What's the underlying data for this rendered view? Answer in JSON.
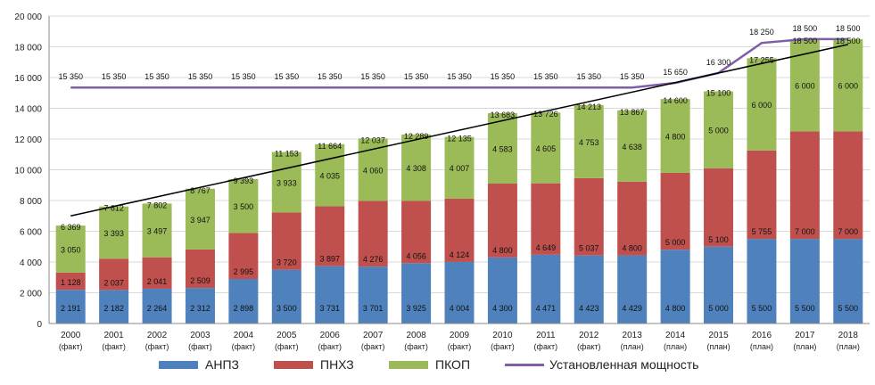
{
  "chart_data": {
    "type": "bar",
    "stacked": true,
    "categories": [
      "2000",
      "2001",
      "2002",
      "2003",
      "2004",
      "2005",
      "2006",
      "2007",
      "2008",
      "2009",
      "2010",
      "2011",
      "2012",
      "2013",
      "2014",
      "2015",
      "2016",
      "2017",
      "2018"
    ],
    "sublabels": [
      "(факт)",
      "(факт)",
      "(факт)",
      "(факт)",
      "(факт)",
      "(факт)",
      "(факт)",
      "(факт)",
      "(факт)",
      "(факт)",
      "(факт)",
      "(факт)",
      "(факт)",
      "(план)",
      "(план)",
      "(план)",
      "(план)",
      "(план)",
      "(план)"
    ],
    "series": [
      {
        "name": "АНПЗ",
        "color": "#4f81bd",
        "values": [
          2191,
          2182,
          2264,
          2312,
          2898,
          3500,
          3731,
          3701,
          3925,
          4004,
          4300,
          4471,
          4423,
          4429,
          4800,
          5000,
          5500,
          5500,
          5500
        ],
        "labels": [
          "2 191",
          "2 182",
          "2 264",
          "2 312",
          "2 898",
          "3 500",
          "3 731",
          "3 701",
          "3 925",
          "4 004",
          "4 300",
          "4 471",
          "4 423",
          "4 429",
          "4 800",
          "5 000",
          "5 500",
          "5 500",
          "5 500"
        ]
      },
      {
        "name": "ПНХЗ",
        "color": "#c0504d",
        "values": [
          1128,
          2037,
          2041,
          2509,
          2995,
          3720,
          3897,
          4276,
          4056,
          4124,
          4800,
          4649,
          5037,
          4800,
          5000,
          5100,
          5755,
          7000,
          7000
        ],
        "labels": [
          "1 128",
          "2 037",
          "2 041",
          "2 509",
          "2 995",
          "3 720",
          "3 897",
          "4 276",
          "4 056",
          "4 124",
          "4 800",
          "4 649",
          "5 037",
          "4 800",
          "5 000",
          "5 100",
          "5 755",
          "7 000",
          "7 000"
        ]
      },
      {
        "name": "ПКОП",
        "color": "#9bbb59",
        "values": [
          3050,
          3393,
          3497,
          3947,
          3500,
          3933,
          4035,
          4060,
          4308,
          4007,
          4583,
          4605,
          4753,
          4638,
          4800,
          5000,
          6000,
          6000,
          6000
        ],
        "labels": [
          "3 050",
          "3 393",
          "3 497",
          "3 947",
          "3 500",
          "3 933",
          "4 035",
          "4 060",
          "4 308",
          "4 007",
          "4 583",
          "4 605",
          "4 753",
          "4 638",
          "4 800",
          "5 000",
          "6 000",
          "6 000",
          "6 000"
        ]
      }
    ],
    "totals": [
      6369,
      7612,
      7802,
      8767,
      9393,
      11153,
      11664,
      12037,
      12289,
      12135,
      13683,
      13726,
      14213,
      13867,
      14600,
      15100,
      17255,
      18500,
      18500
    ],
    "total_labels": [
      "6 369",
      "7 612",
      "7 802",
      "8 767",
      "9 393",
      "11 153",
      "11 664",
      "12 037",
      "12 289",
      "12 135",
      "13 683",
      "13 726",
      "14 213",
      "13 867",
      "14 600",
      "15 100",
      "17 255",
      "18 500",
      "18 500"
    ],
    "capacity": {
      "name": "Установленная мощность",
      "color": "#7f5fa8",
      "values": [
        15350,
        15350,
        15350,
        15350,
        15350,
        15350,
        15350,
        15350,
        15350,
        15350,
        15350,
        15350,
        15350,
        15350,
        15650,
        16300,
        18250,
        18500,
        18500
      ],
      "labels": [
        "15 350",
        "15 350",
        "15 350",
        "15 350",
        "15 350",
        "15 350",
        "15 350",
        "15 350",
        "15 350",
        "15 350",
        "15 350",
        "15 350",
        "15 350",
        "15 350",
        "15 650",
        "16 300",
        "18 250",
        "18 500",
        "18 500"
      ]
    },
    "trendline": {
      "color": "#000000",
      "start": 7000,
      "end": 18150
    },
    "ylim": [
      0,
      20000
    ],
    "yticks": [
      0,
      2000,
      4000,
      6000,
      8000,
      10000,
      12000,
      14000,
      16000,
      18000,
      20000
    ],
    "ytick_labels": [
      "0",
      "2 000",
      "4 000",
      "6 000",
      "8 000",
      "10 000",
      "12 000",
      "14 000",
      "16 000",
      "18 000",
      "20 000"
    ],
    "grid": true,
    "legend_position": "bottom"
  }
}
